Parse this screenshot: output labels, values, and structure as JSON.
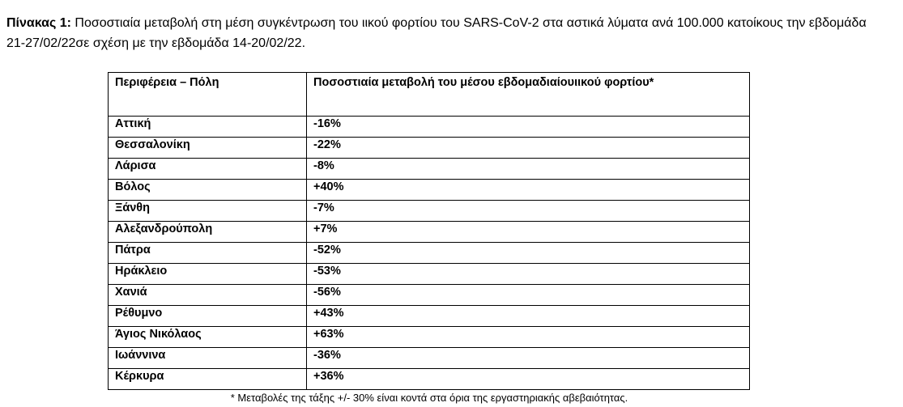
{
  "caption": {
    "label": "Πίνακας 1:",
    "text": "Ποσοστιαία μεταβολή στη μέση συγκέντρωση του ιικού φορτίου του SARS-CoV-2 στα αστικά λύματα ανά 100.000 κατοίκους την εβδομάδα 21-27/02/22σε σχέση με την εβδομάδα 14-20/02/22."
  },
  "table": {
    "header": [
      "Περιφέρεια – Πόλη",
      "Ποσοστιαία μεταβολή του μέσου εβδομαδιαίουιικού φορτίου*"
    ],
    "rows": [
      [
        "Αττική",
        "-16%"
      ],
      [
        "Θεσσαλονίκη",
        "-22%"
      ],
      [
        "Λάρισα",
        "-8%"
      ],
      [
        "Βόλος",
        "+40%"
      ],
      [
        "Ξάνθη",
        "-7%"
      ],
      [
        "Αλεξανδρούπολη",
        "+7%"
      ],
      [
        "Πάτρα",
        "-52%"
      ],
      [
        "Ηράκλειο",
        "-53%"
      ],
      [
        "Χανιά",
        "-56%"
      ],
      [
        "Ρέθυμνο",
        "+43%"
      ],
      [
        "Άγιος Νικόλαος",
        "+63%"
      ],
      [
        "Ιωάννινα",
        "-36%"
      ],
      [
        "Κέρκυρα",
        "+36%"
      ]
    ]
  },
  "footnote": "* Μεταβολές της τάξης +/- 30% είναι κοντά στα όρια της εργαστηριακής αβεβαιότητας."
}
